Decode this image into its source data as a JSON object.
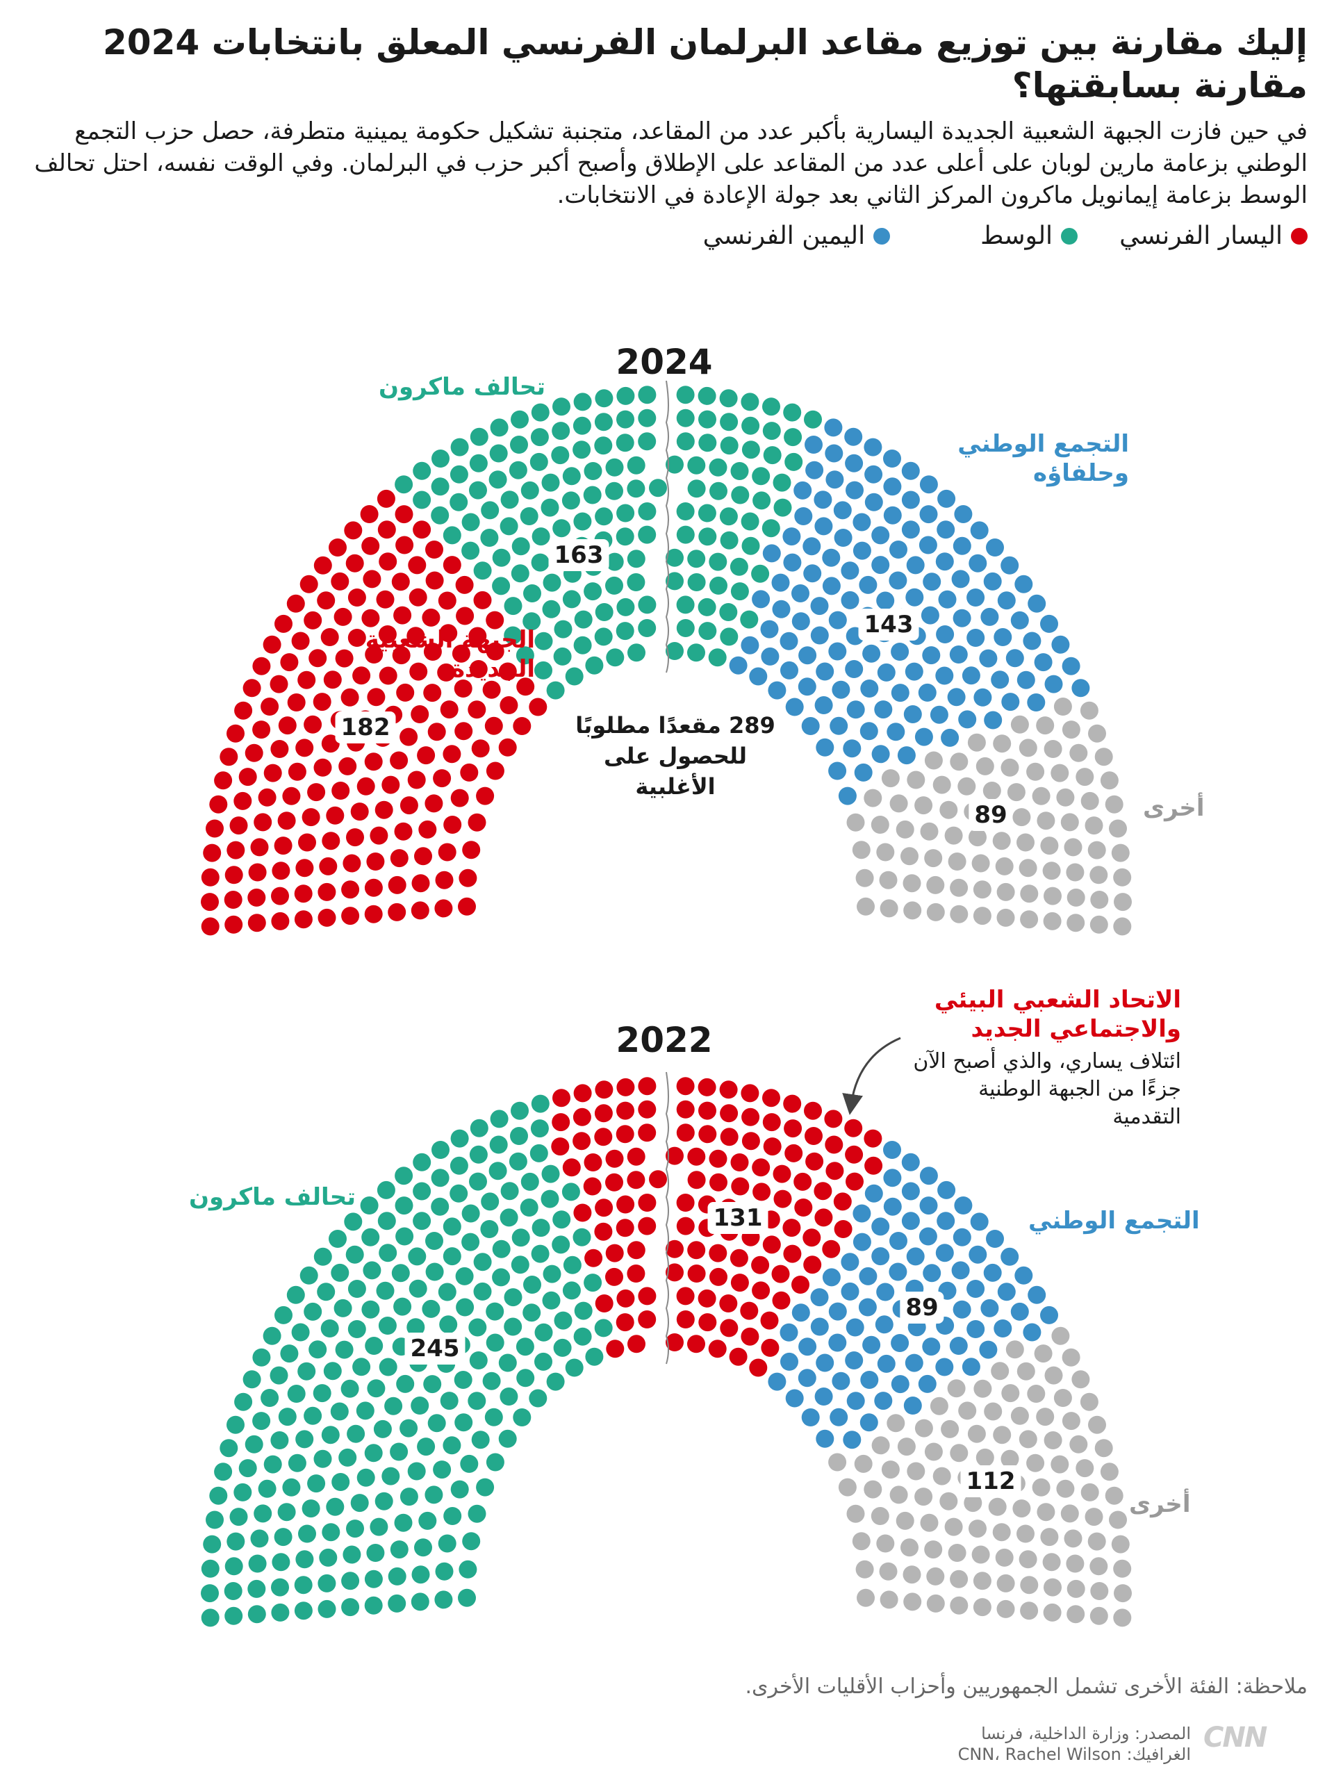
{
  "header": {
    "title": "إليك مقارنة بين توزيع مقاعد البرلمان الفرنسي المعلق بانتخابات 2024 مقارنة بسابقتها؟",
    "description": "في حين فازت الجبهة الشعبية الجديدة اليسارية بأكبر عدد من المقاعد، متجنبة تشكيل حكومة يمينية متطرفة، حصل حزب التجمع الوطني بزعامة مارين لوبان على أعلى عدد من المقاعد على الإطلاق وأصبح أكبر حزب في البرلمان. وفي الوقت نفسه، احتل تحالف الوسط بزعامة إيمانويل ماكرون المركز الثاني بعد جولة الإعادة في الانتخابات."
  },
  "legend": [
    {
      "label": "اليسار الفرنسي",
      "color": "#d7000f"
    },
    {
      "label": "الوسط",
      "color": "#23a98c"
    },
    {
      "label": "اليمين الفرنسي",
      "color": "#3a8fc7"
    }
  ],
  "colors": {
    "left": "#d7000f",
    "center": "#23a98c",
    "right": "#3a8fc7",
    "other": "#b5b5b5"
  },
  "chart_data": [
    {
      "type": "hemicycle",
      "title": "2024",
      "total_seats": 577,
      "series": [
        {
          "name": "الجبهة الشعبية الجديدة",
          "value": 182,
          "color": "#d7000f"
        },
        {
          "name": "تحالف ماكرون",
          "value": 163,
          "color": "#23a98c"
        },
        {
          "name": "التجمع الوطني وحلفاؤه",
          "value": 143,
          "color": "#3a8fc7"
        },
        {
          "name": "أخرى",
          "value": 89,
          "color": "#b5b5b5"
        }
      ],
      "annotation": "289 مقعدًا مطلوبًا للحصول على الأغلبية"
    },
    {
      "type": "hemicycle",
      "title": "2022",
      "total_seats": 577,
      "series": [
        {
          "name": "تحالف ماكرون",
          "value": 245,
          "color": "#23a98c"
        },
        {
          "name": "الاتحاد الشعبي البيئي والاجتماعي الجديد",
          "value": 131,
          "color": "#d7000f"
        },
        {
          "name": "التجمع الوطني",
          "value": 89,
          "color": "#3a8fc7"
        },
        {
          "name": "أخرى",
          "value": 112,
          "color": "#b5b5b5"
        }
      ],
      "annotation": "ائتلاف يساري، والذي أصبح الآن جزءًا من الجبهة الوطنية التقدمية"
    }
  ],
  "footer": {
    "note": "ملاحظة: الفئة الأخرى تشمل الجمهوريين وأحزاب الأقليات الأخرى.",
    "source": "المصدر: وزارة الداخلية، فرنسا",
    "graphics": "الغرافيك: CNN، Rachel Wilson",
    "logo": "CNN بالعربية"
  }
}
